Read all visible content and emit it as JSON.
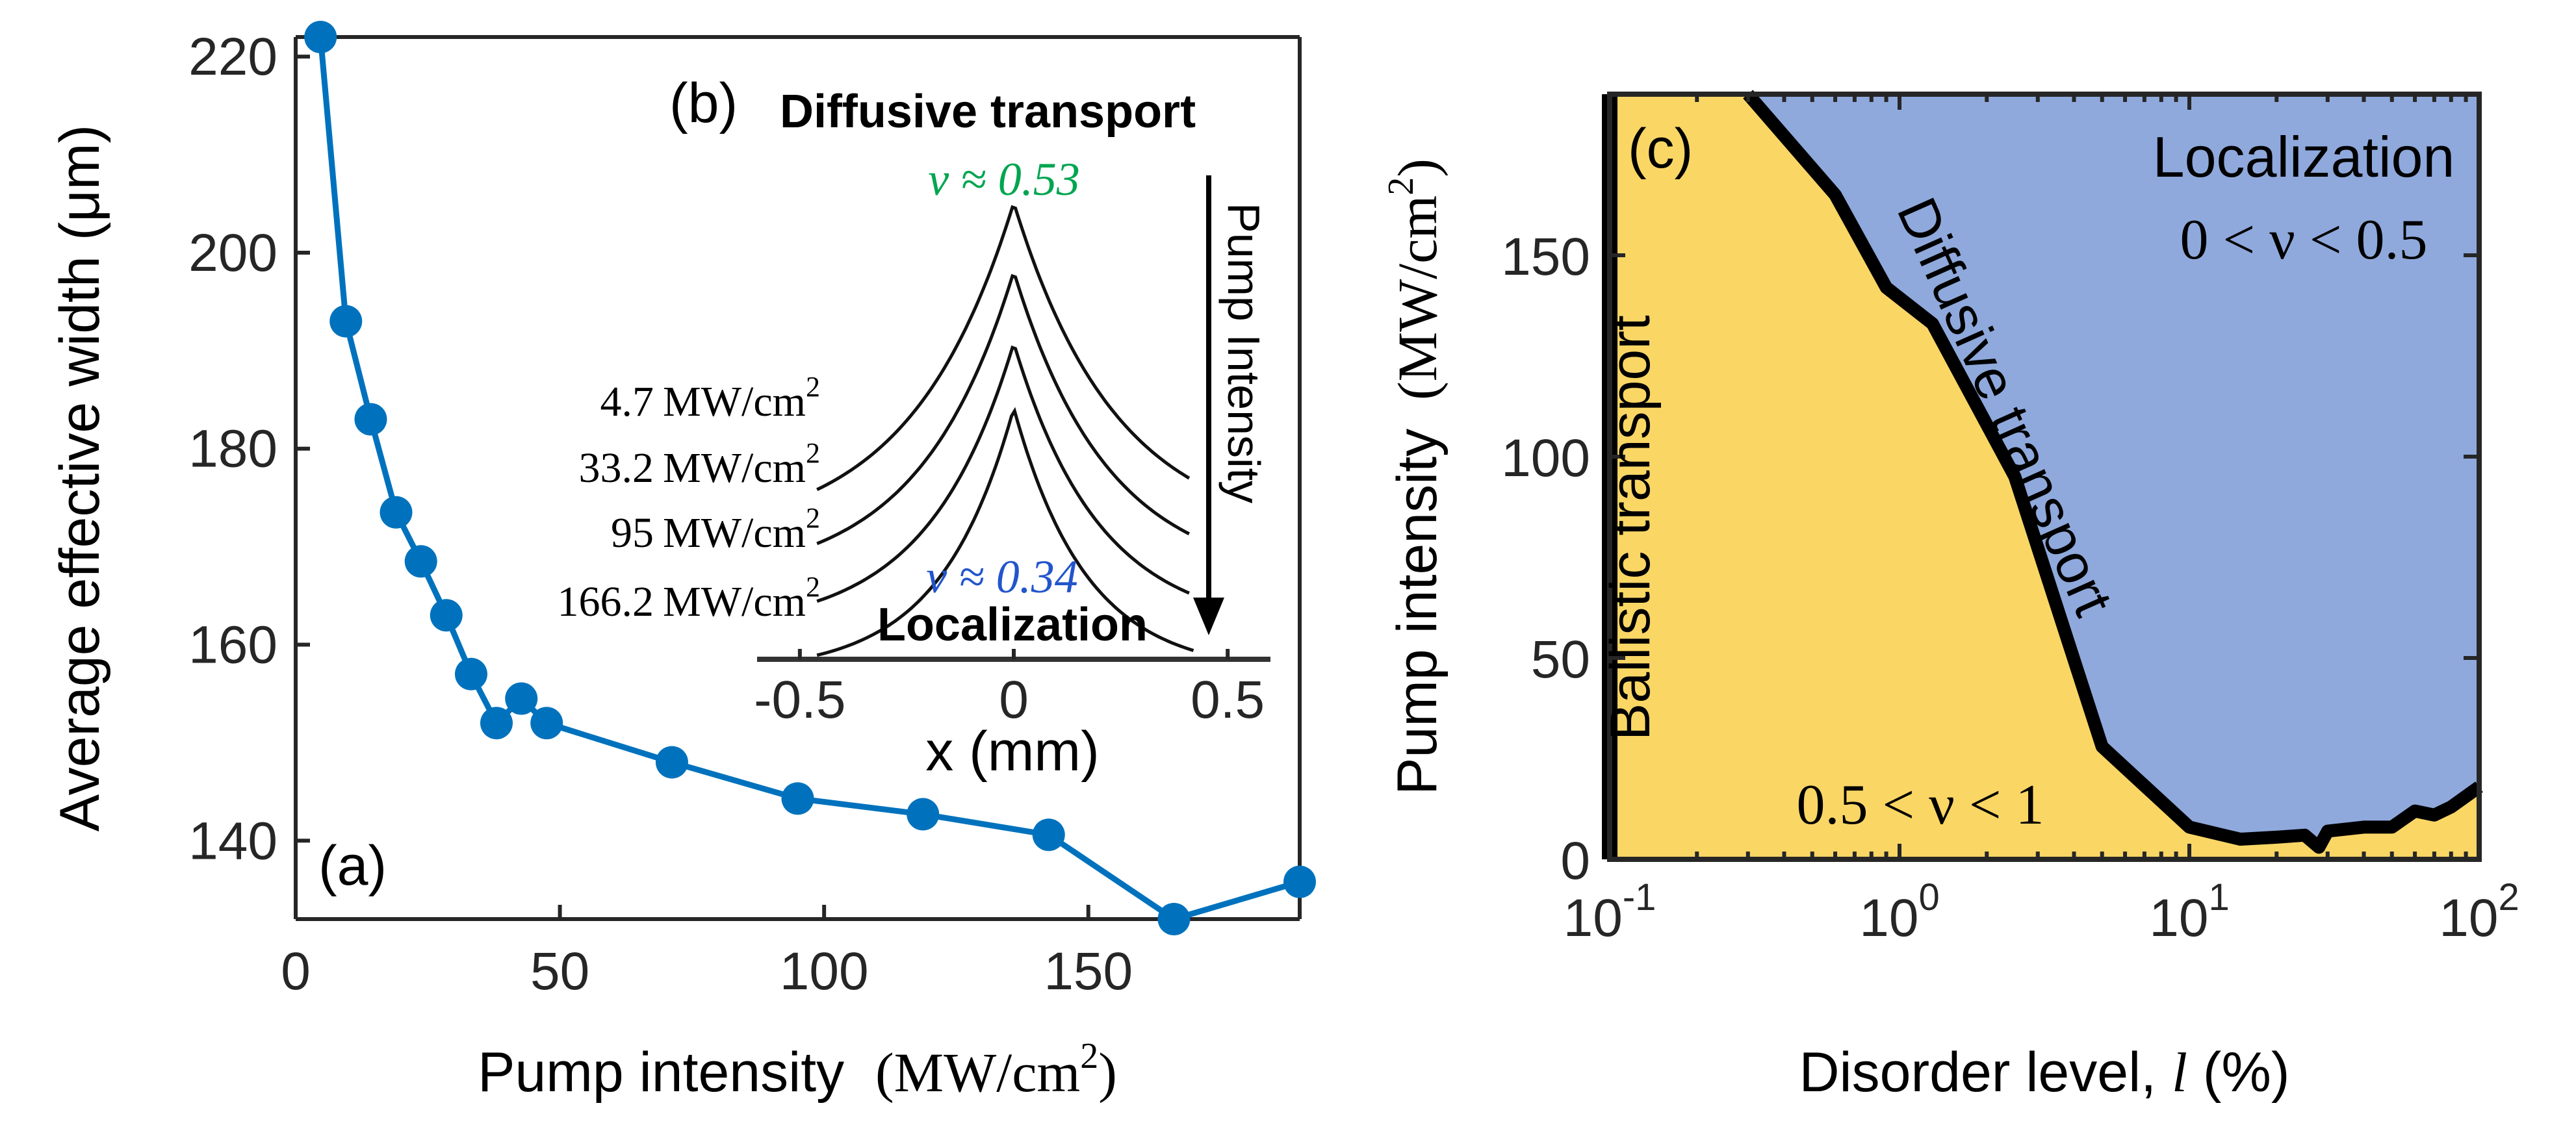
{
  "colors": {
    "series_blue": "#0072BD",
    "localization_fill": "#8FA9DC",
    "ballistic_fill": "#FAD665",
    "nu_diffusive_color": "#00A550",
    "nu_localized_color": "#2255CC"
  },
  "chart_data": [
    {
      "panel": "(a)",
      "type": "line",
      "title": "",
      "xlabel_prefix": "Pump intensity",
      "xlabel_unit": "(MW/cm",
      "xlabel_sup": "2",
      "xlabel_close": ")",
      "ylabel": "Average effective width (μm)",
      "xlim": [
        0,
        190
      ],
      "ylim": [
        132,
        222
      ],
      "xticks": [
        0,
        50,
        100,
        150
      ],
      "xtick_labels": [
        "0",
        "50",
        "100",
        "150"
      ],
      "yticks": [
        140,
        160,
        180,
        200,
        220
      ],
      "ytick_labels": [
        "140",
        "160",
        "180",
        "200",
        "220"
      ],
      "markers": true,
      "series": [
        {
          "name": "average effective width",
          "x": [
            4.7,
            9.5,
            14.2,
            19,
            23.7,
            28.5,
            33.2,
            38,
            42.7,
            47.5,
            71.2,
            95,
            118.7,
            142.5,
            166.2,
            190
          ],
          "y": [
            222,
            193,
            183,
            173.5,
            168.5,
            163,
            157,
            152,
            154.5,
            152,
            148,
            144.3,
            142.7,
            140.6,
            132,
            135.8
          ]
        }
      ]
    },
    {
      "panel": "(b)",
      "type": "line",
      "title": "Diffusive transport",
      "bottom_title": "Localization",
      "xlabel": "x (mm)",
      "ylabel": "",
      "xlim": [
        -0.6,
        0.6
      ],
      "xticks": [
        -0.5,
        0,
        0.5
      ],
      "xtick_labels": [
        "-0.5",
        "0",
        "0.5"
      ],
      "nu_top": "ν ≈ 0.53",
      "nu_bottom": "ν ≈ 0.34",
      "arrow_label": "Pump Intensity",
      "series": [
        {
          "name": "4.7 MW/cm2",
          "label_value": "4.7",
          "label_unit": "MW/cm",
          "label_sup": "2",
          "width": 0.24
        },
        {
          "name": "33.2 MW/cm2",
          "label_value": "33.2",
          "label_unit": "MW/cm",
          "label_sup": "2",
          "width": 0.22
        },
        {
          "name": "95 MW/cm2",
          "label_value": "95",
          "label_unit": "MW/cm",
          "label_sup": "2",
          "width": 0.2
        },
        {
          "name": "166.2 MW/cm2",
          "label_value": "166.2",
          "label_unit": "MW/cm",
          "label_sup": "2",
          "width": 0.17
        }
      ]
    },
    {
      "panel": "(c)",
      "type": "area",
      "title": "",
      "xlabel_prefix": "Disorder level, ",
      "xlabel_var": "l",
      "xlabel_suffix": " (%)",
      "ylabel_prefix": "Pump intensity",
      "ylabel_unit": "(MW/cm",
      "ylabel_sup": "2",
      "ylabel_close": ")",
      "xscale": "log",
      "xlim": [
        0.1,
        100
      ],
      "ylim": [
        0,
        190
      ],
      "xtick_exponents": [
        "-1",
        "0",
        "1",
        "2"
      ],
      "xtick_base": "10",
      "yticks": [
        0,
        50,
        100,
        150
      ],
      "ytick_labels": [
        "0",
        "50",
        "100",
        "150"
      ],
      "boundary": {
        "x": [
          0.3,
          0.6,
          0.9,
          1.3,
          2.5,
          5,
          10,
          15,
          20,
          25,
          28,
          30,
          40,
          50,
          60,
          70,
          80,
          100
        ],
        "y": [
          190,
          165,
          142,
          133,
          95,
          28,
          8,
          5,
          5.5,
          6,
          3,
          7,
          8,
          8,
          12,
          11,
          13,
          18
        ]
      },
      "regions": {
        "localization": {
          "name": "Localization",
          "range": "0 < ν < 0.5"
        },
        "diffusive": {
          "name": "Diffusive transport"
        },
        "ballistic": {
          "name": "Ballistic transport",
          "range": "0.5 < ν < 1"
        }
      }
    }
  ]
}
